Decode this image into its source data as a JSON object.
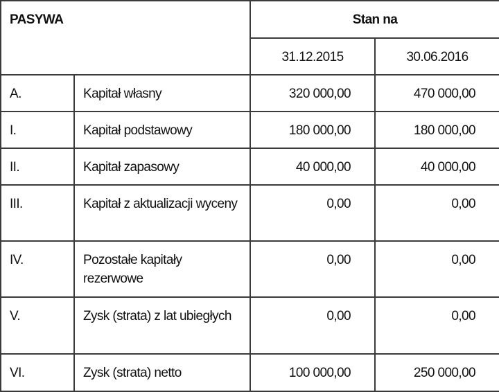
{
  "header": {
    "title": "PASYWA",
    "stan_na": "Stan na",
    "dates": [
      "31.12.2015",
      "30.06.2016"
    ]
  },
  "rows": [
    {
      "code": "A.",
      "name": "Kapitał własny",
      "v1": "320 000,00",
      "v2": "470 000,00"
    },
    {
      "code": "I.",
      "name": "Kapitał podstawowy",
      "v1": "180 000,00",
      "v2": "180 000,00"
    },
    {
      "code": "II.",
      "name": "Kapitał zapasowy",
      "v1": "40 000,00",
      "v2": "40 000,00"
    },
    {
      "code": "III.",
      "name": "Kapitał z aktualizacji wyceny",
      "v1": "0,00",
      "v2": "0,00"
    },
    {
      "code": "IV.",
      "name": "Pozostałe kapitały rezerwowe",
      "v1": "0,00",
      "v2": "0,00"
    },
    {
      "code": "V.",
      "name": "Zysk (strata) z lat ubiegłych",
      "v1": "0,00",
      "v2": "0,00"
    },
    {
      "code": "VI.",
      "name": "Zysk (strata) netto",
      "v1": "100 000,00",
      "v2": "250 000,00"
    }
  ]
}
